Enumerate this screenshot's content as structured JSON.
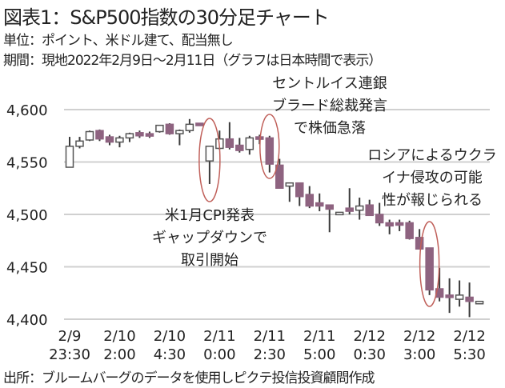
{
  "title": "図表1：S&P500指数の30分足チャート",
  "unit_note": "単位：ポイント、米ドル建て、配当無し",
  "period_note": "期間：現地2022年2月9日～2月11日（グラフは日本時間で表示）",
  "source_note": "出所：ブルームバーグのデータを使用しピクテ投信投資顧問作成",
  "chart_data": {
    "type": "candlestick",
    "title": "図表1：S&P500指数の30分足チャート",
    "ylim": [
      4400,
      4600
    ],
    "yticks": [
      4400,
      4450,
      4500,
      4550,
      4600
    ],
    "ytick_labels": [
      "4,400",
      "4,450",
      "4,500",
      "4,550",
      "4,600"
    ],
    "grid": true,
    "xtick_labels": [
      {
        "index": 0,
        "date": "2/9",
        "time": "23:30"
      },
      {
        "index": 5,
        "date": "2/10",
        "time": "2:00"
      },
      {
        "index": 10,
        "date": "2/10",
        "time": "4:30"
      },
      {
        "index": 15,
        "date": "2/11",
        "time": "0:00"
      },
      {
        "index": 20,
        "date": "2/11",
        "time": "2:30"
      },
      {
        "index": 25,
        "date": "2/11",
        "time": "5:00"
      },
      {
        "index": 30,
        "date": "2/12",
        "time": "0:30"
      },
      {
        "index": 35,
        "date": "2/12",
        "time": "3:00"
      },
      {
        "index": 40,
        "date": "2/12",
        "time": "5:30"
      }
    ],
    "ohlc": [
      [
        4545,
        4574,
        4545,
        4565
      ],
      [
        4565,
        4574,
        4563,
        4570
      ],
      [
        4571,
        4580,
        4570,
        4579
      ],
      [
        4580,
        4581,
        4570,
        4572
      ],
      [
        4574,
        4576,
        4566,
        4569
      ],
      [
        4569,
        4575,
        4564,
        4573
      ],
      [
        4573,
        4578,
        4569,
        4577
      ],
      [
        4578,
        4580,
        4573,
        4575
      ],
      [
        4577,
        4579,
        4573,
        4575
      ],
      [
        4579,
        4585,
        4578,
        4585
      ],
      [
        4586,
        4587,
        4576,
        4577
      ],
      [
        4577,
        4581,
        4566,
        4580
      ],
      [
        4580,
        4591,
        4578,
        4586
      ],
      [
        4587,
        4587,
        4586,
        4586
      ],
      [
        4551,
        4565,
        4529,
        4565
      ],
      [
        4563,
        4580,
        4562,
        4572
      ],
      [
        4572,
        4588,
        4562,
        4564
      ],
      [
        4566,
        4573,
        4559,
        4561
      ],
      [
        4562,
        4575,
        4557,
        4573
      ],
      [
        4574,
        4576,
        4567,
        4572
      ],
      [
        4573,
        4575,
        4540,
        4548
      ],
      [
        4547,
        4553,
        4525,
        4525
      ],
      [
        4527,
        4530,
        4512,
        4530
      ],
      [
        4530,
        4530,
        4508,
        4517
      ],
      [
        4519,
        4527,
        4506,
        4508
      ],
      [
        4511,
        4520,
        4503,
        4508
      ],
      [
        4509,
        4509,
        4483,
        4505
      ],
      [
        4502,
        4502,
        4502,
        4502
      ],
      [
        4506,
        4525,
        4500,
        4503
      ],
      [
        4504,
        4516,
        4495,
        4508
      ],
      [
        4509,
        4514,
        4499,
        4499
      ],
      [
        4500,
        4511,
        4489,
        4492
      ],
      [
        4492,
        4495,
        4481,
        4489
      ],
      [
        4492,
        4495,
        4484,
        4490
      ],
      [
        4492,
        4494,
        4476,
        4477
      ],
      [
        4478,
        4486,
        4467,
        4467
      ],
      [
        4468,
        4468,
        4423,
        4428
      ],
      [
        4429,
        4449,
        4417,
        4421
      ],
      [
        4423,
        4439,
        4406,
        4421
      ],
      [
        4419,
        4437,
        4412,
        4423
      ],
      [
        4421,
        4435,
        4402,
        4417
      ],
      [
        4417,
        4417,
        4417,
        4417
      ]
    ],
    "annotations": [
      {
        "index": 14,
        "lines": [
          "米1月CPI発表",
          "ギャップダウンで",
          "取引開始"
        ]
      },
      {
        "index": 20,
        "lines": [
          "セントルイス連銀",
          "ブラード総裁発言",
          "で株価急落"
        ]
      },
      {
        "index": 36,
        "lines": [
          "ロシアによるウクラ",
          "イナ侵攻の可能",
          "性が報じられる"
        ]
      }
    ],
    "colors": {
      "down": "#8e6380",
      "up_fill": "#ffffff",
      "up_border": "#555555",
      "wick": "#3a3a3a",
      "grid": "#d0d0d0",
      "highlight": "#c0605a"
    }
  }
}
